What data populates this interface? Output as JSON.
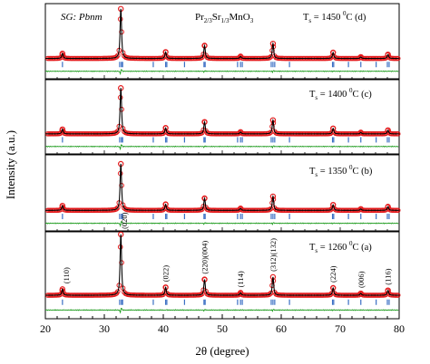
{
  "chart_data": {
    "type": "line",
    "header_left": "SG: Pbnm",
    "formula": {
      "a": "Pr",
      "a_sub": "2/3",
      "b": "Sr",
      "b_sub": "1/3",
      "c": "MnO",
      "c_sub": "3"
    },
    "xlabel": "2θ (degree)",
    "ylabel": "Intensity (a.u.)",
    "xlim": [
      20,
      80
    ],
    "xticks": [
      "20",
      "30",
      "40",
      "50",
      "60",
      "70",
      "80"
    ],
    "colors": {
      "observed": "#e41a1c",
      "calculated": "#000000",
      "difference": "#1a9a1a",
      "bragg": "#3a6fc4"
    },
    "peaks": [
      {
        "x": 22.9,
        "hkl": "(110)",
        "h": 0.1
      },
      {
        "x": 32.8,
        "hkl": "(020)",
        "h": 1.0
      },
      {
        "x": 40.4,
        "hkl": "(022)",
        "h": 0.13
      },
      {
        "x": 47.0,
        "hkl": "(220)(004)",
        "h": 0.26
      },
      {
        "x": 53.1,
        "hkl": "(114)",
        "h": 0.04
      },
      {
        "x": 58.6,
        "hkl": "(312)(132)",
        "h": 0.3
      },
      {
        "x": 68.8,
        "hkl": "(224)",
        "h": 0.12
      },
      {
        "x": 73.5,
        "hkl": "(006)",
        "h": 0.03
      },
      {
        "x": 78.1,
        "hkl": "(116)",
        "h": 0.08
      }
    ],
    "bragg_positions": [
      22.9,
      32.6,
      32.9,
      33.1,
      38.3,
      40.4,
      40.6,
      43.6,
      46.9,
      47.1,
      52.6,
      53.1,
      53.4,
      58.3,
      58.6,
      58.9,
      61.4,
      68.7,
      68.9,
      71.4,
      73.5,
      76.1,
      78.0,
      78.3
    ],
    "series": [
      {
        "label_prefix": "T",
        "label_sub": "s",
        "label_value": " = 1450 ",
        "label_deg": "0",
        "label_unit": "C (d)"
      },
      {
        "label_prefix": "T",
        "label_sub": "s",
        "label_value": " = 1400 ",
        "label_deg": "0",
        "label_unit": "C (c)"
      },
      {
        "label_prefix": "T",
        "label_sub": "s",
        "label_value": " = 1350 ",
        "label_deg": "0",
        "label_unit": "C (b)"
      },
      {
        "label_prefix": "T",
        "label_sub": "s",
        "label_value": " = 1260 ",
        "label_deg": "0",
        "label_unit": "C (a)"
      }
    ]
  }
}
